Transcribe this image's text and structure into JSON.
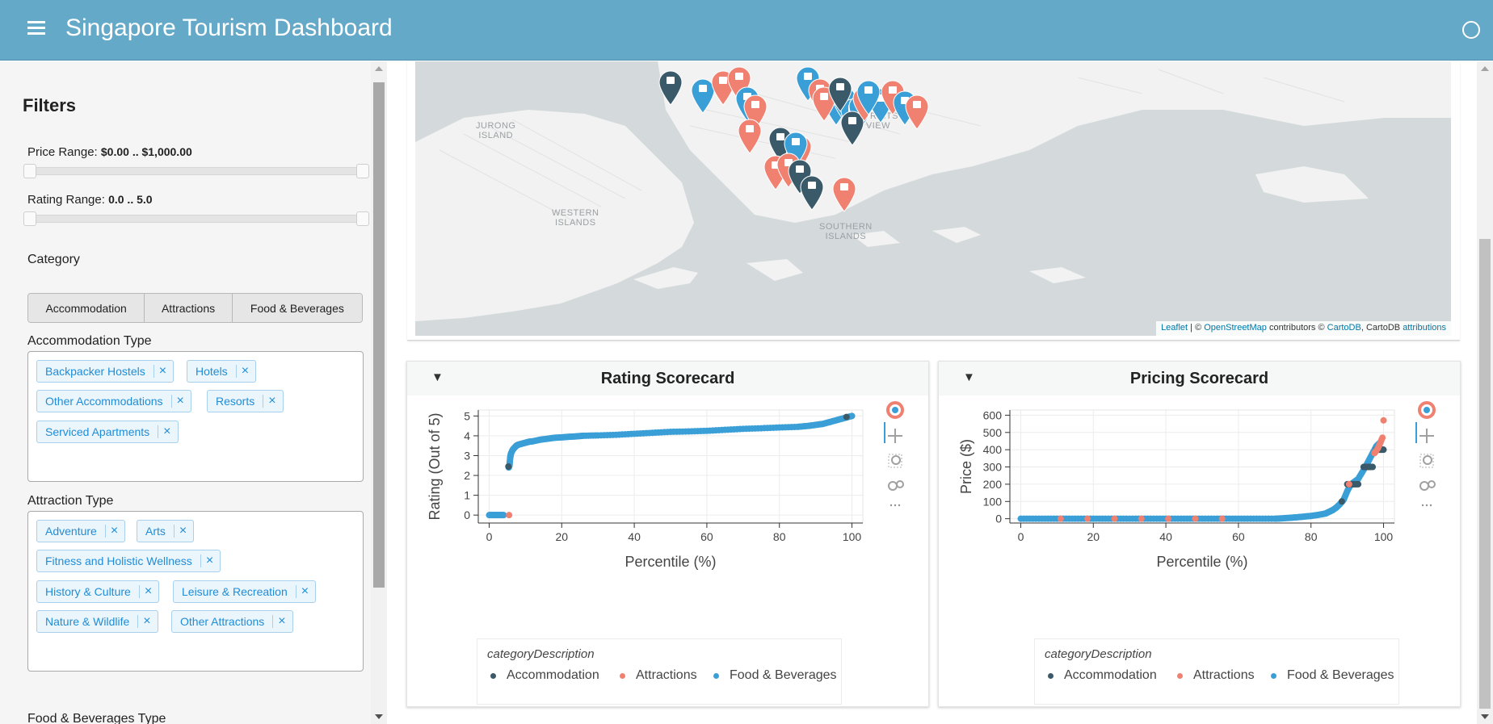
{
  "header": {
    "title": "Singapore Tourism Dashboard"
  },
  "sidebar": {
    "title": "Filters",
    "price_range": {
      "label": "Price Range: ",
      "value": "$0.00 .. $1,000.00"
    },
    "rating_range": {
      "label": "Rating Range: ",
      "value": "0.0 .. 5.0"
    },
    "category_label": "Category",
    "category_buttons": [
      "Accommodation",
      "Attractions",
      "Food & Beverages"
    ],
    "accommodation_type_label": "Accommodation Type",
    "accommodation_types": [
      "Backpacker Hostels",
      "Hotels",
      "Other Accommodations",
      "Resorts",
      "Serviced Apartments"
    ],
    "attraction_type_label": "Attraction Type",
    "attraction_types": [
      "Adventure",
      "Arts",
      "Fitness and Holistic Wellness",
      "History & Culture",
      "Leisure & Recreation",
      "Nature & Wildlife",
      "Other Attractions"
    ],
    "food_type_label": "Food & Beverages Type",
    "chip_remove": "×"
  },
  "map": {
    "labels": [
      "JURONG\nISLAND",
      "STRAITS\nVIEW",
      "WESTERN\nISLANDS",
      "SOUTHERN\nISLANDS"
    ],
    "attribution": {
      "leaflet": "Leaflet",
      "sep": " | © ",
      "osm": "OpenStreetMap",
      "contributors": " contributors © ",
      "cartodb": "CartoDB",
      "mid": ", CartoDB ",
      "attributions": "attributions"
    }
  },
  "colors": {
    "accommodation": "#3a5a6a",
    "attractions": "#f08070",
    "food": "#3a9fd6",
    "header": "#65a9c8"
  },
  "rating_card": {
    "toggle": "▼",
    "title": "Rating Scorecard",
    "legend_title": "categoryDescription",
    "legend": [
      "Accommodation",
      "Attractions",
      "Food & Beverages"
    ]
  },
  "pricing_card": {
    "toggle": "▼",
    "title": "Pricing Scorecard",
    "legend_title": "categoryDescription",
    "legend": [
      "Accommodation",
      "Attractions",
      "Food & Beverages"
    ]
  },
  "chart_data": [
    {
      "type": "scatter",
      "title": "Rating Scorecard",
      "xlabel": "Percentile (%)",
      "ylabel": "Rating (Out of 5)",
      "xlim": [
        -3,
        103
      ],
      "ylim": [
        -0.4,
        5.3
      ],
      "xticks": [
        0,
        20,
        40,
        60,
        80,
        100
      ],
      "yticks": [
        0,
        1,
        2,
        3,
        4,
        5
      ],
      "grid": true,
      "legend_placement": "bottom",
      "series": [
        {
          "name": "Food & Beverages",
          "color": "#3a9fd6",
          "points": [
            [
              0,
              0
            ],
            [
              1,
              0
            ],
            [
              2,
              0
            ],
            [
              3,
              0
            ],
            [
              4,
              0
            ],
            [
              5.4,
              2.4
            ],
            [
              5.6,
              2.5
            ],
            [
              5.8,
              2.9
            ],
            [
              6,
              3.1
            ],
            [
              6.5,
              3.3
            ],
            [
              7,
              3.4
            ],
            [
              7.5,
              3.5
            ],
            [
              8,
              3.55
            ],
            [
              9,
              3.6
            ],
            [
              10,
              3.65
            ],
            [
              11,
              3.7
            ],
            [
              12,
              3.72
            ],
            [
              14,
              3.8
            ],
            [
              16,
              3.85
            ],
            [
              18,
              3.9
            ],
            [
              20,
              3.92
            ],
            [
              22,
              3.95
            ],
            [
              24,
              3.97
            ],
            [
              26,
              4.0
            ],
            [
              30,
              4.02
            ],
            [
              35,
              4.05
            ],
            [
              40,
              4.1
            ],
            [
              45,
              4.15
            ],
            [
              50,
              4.2
            ],
            [
              55,
              4.22
            ],
            [
              60,
              4.25
            ],
            [
              65,
              4.3
            ],
            [
              70,
              4.35
            ],
            [
              75,
              4.38
            ],
            [
              80,
              4.42
            ],
            [
              85,
              4.45
            ],
            [
              88,
              4.5
            ],
            [
              90,
              4.55
            ],
            [
              92,
              4.6
            ],
            [
              94,
              4.7
            ],
            [
              96,
              4.8
            ],
            [
              98,
              4.9
            ],
            [
              100,
              5.0
            ]
          ]
        },
        {
          "name": "Accommodation",
          "color": "#3a5a6a",
          "points": [
            [
              5.3,
              2.45
            ],
            [
              98.5,
              4.95
            ]
          ]
        },
        {
          "name": "Attractions",
          "color": "#f08070",
          "points": [
            [
              5.5,
              0
            ]
          ]
        }
      ]
    },
    {
      "type": "scatter",
      "title": "Pricing Scorecard",
      "xlabel": "Percentile (%)",
      "ylabel": "Price ($)",
      "xlim": [
        -3,
        103
      ],
      "ylim": [
        -25,
        630
      ],
      "xticks": [
        0,
        20,
        40,
        60,
        80,
        100
      ],
      "yticks": [
        0,
        100,
        200,
        300,
        400,
        500,
        600
      ],
      "grid": true,
      "legend_placement": "bottom",
      "series": [
        {
          "name": "Food & Beverages",
          "color": "#3a9fd6",
          "points": [
            [
              0,
              0
            ],
            [
              5,
              0
            ],
            [
              10,
              0
            ],
            [
              15,
              0
            ],
            [
              20,
              0
            ],
            [
              25,
              0
            ],
            [
              30,
              0
            ],
            [
              35,
              0
            ],
            [
              40,
              0
            ],
            [
              45,
              0
            ],
            [
              50,
              0
            ],
            [
              55,
              0
            ],
            [
              60,
              0
            ],
            [
              65,
              0
            ],
            [
              70,
              0
            ],
            [
              72,
              2
            ],
            [
              74,
              5
            ],
            [
              76,
              8
            ],
            [
              78,
              12
            ],
            [
              80,
              16
            ],
            [
              82,
              22
            ],
            [
              84,
              30
            ],
            [
              85,
              40
            ],
            [
              86,
              50
            ],
            [
              87,
              65
            ],
            [
              88,
              85
            ],
            [
              89,
              110
            ],
            [
              90,
              160
            ],
            [
              91,
              200
            ],
            [
              93,
              230
            ],
            [
              95,
              300
            ],
            [
              96,
              340
            ],
            [
              97,
              380
            ],
            [
              98,
              420
            ],
            [
              99,
              440
            ]
          ]
        },
        {
          "name": "Accommodation",
          "color": "#3a5a6a",
          "points": [
            [
              88.5,
              100
            ],
            [
              90,
              200
            ],
            [
              91.5,
              200
            ],
            [
              93,
              200
            ],
            [
              94.5,
              300
            ],
            [
              95.5,
              300
            ],
            [
              97,
              300
            ],
            [
              98,
              400
            ],
            [
              99,
              400
            ],
            [
              100,
              400
            ]
          ]
        },
        {
          "name": "Attractions",
          "color": "#f08070",
          "points": [
            [
              11,
              0
            ],
            [
              55.5,
              0
            ],
            [
              90.5,
              200
            ],
            [
              97.5,
              380
            ],
            [
              98.5,
              410
            ],
            [
              99.7,
              470
            ],
            [
              100,
              570
            ]
          ]
        }
      ]
    }
  ]
}
